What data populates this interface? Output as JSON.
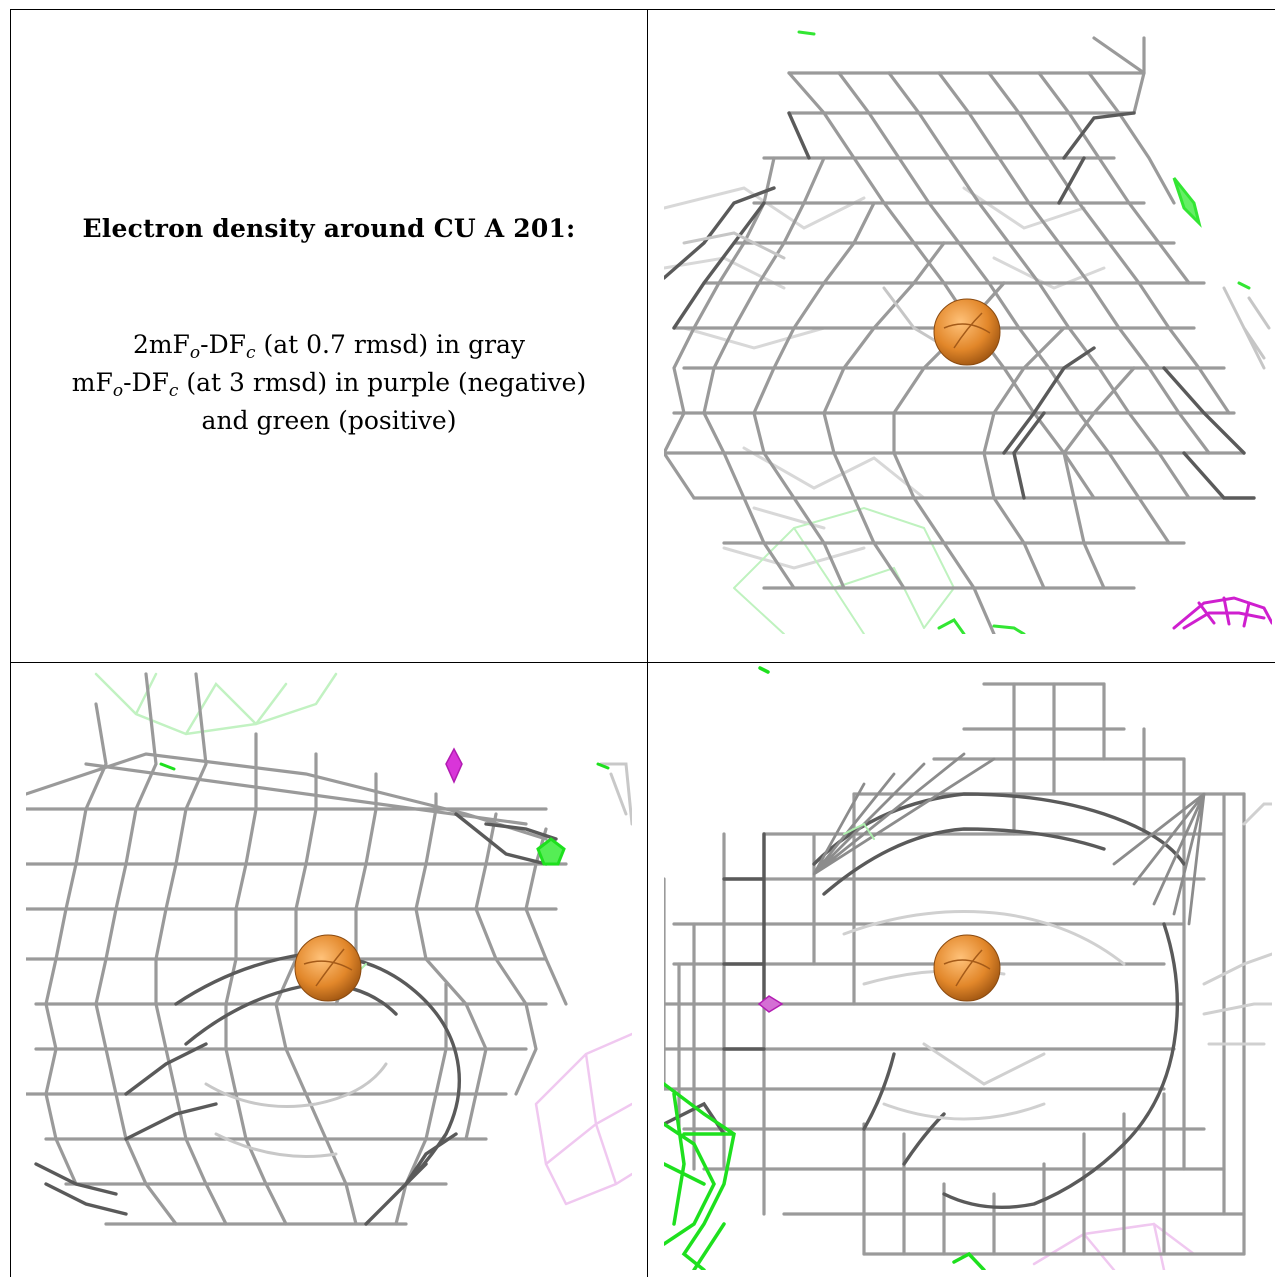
{
  "caption": {
    "title": "Electron density around CU A 201:",
    "line1_pre": "2mF",
    "line1_sub1": "o",
    "line1_mid": "-DF",
    "line1_sub2": "c",
    "line1_post": " (at 0.7 rmsd) in gray",
    "line2_pre": "mF",
    "line2_sub1": "o",
    "line2_mid": "-DF",
    "line2_sub2": "c",
    "line2_post": " (at 3 rmsd) in purple (negative)",
    "line3": "and green (positive)"
  },
  "colors": {
    "mesh_gray": "#8a8a8a",
    "mesh_dark": "#555555",
    "mesh_light": "#cfcfcf",
    "positive_green": "#16e016",
    "negative_purple": "#d21ed2",
    "atom_orange": "#e2872a"
  },
  "panels": [
    {
      "view": "view-1",
      "atom_label": "CU A 201"
    },
    {
      "view": "view-2",
      "atom_label": "CU A 201"
    },
    {
      "view": "view-3",
      "atom_label": "CU A 201"
    }
  ]
}
